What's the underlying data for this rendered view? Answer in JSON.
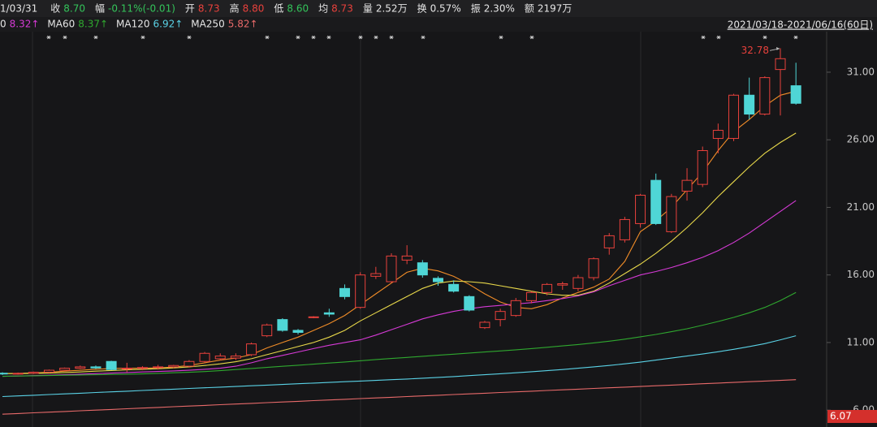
{
  "header": {
    "quote": [
      {
        "label": "1/03/31",
        "color": "#e6e6e6"
      },
      {
        "label": "收",
        "value": "8.70",
        "color": "#33c45a"
      },
      {
        "label": "幅",
        "value": "-0.11%(-0.01)",
        "color": "#33c45a"
      },
      {
        "label": "开",
        "value": "8.73",
        "color": "#e8413c"
      },
      {
        "label": "高",
        "value": "8.80",
        "color": "#e8413c"
      },
      {
        "label": "低",
        "value": "8.60",
        "color": "#33c45a"
      },
      {
        "label": "均",
        "value": "8.73",
        "color": "#e8413c"
      },
      {
        "label": "量",
        "value": "2.52万",
        "color": "#e6e6e6"
      },
      {
        "label": "换",
        "value": "0.57%",
        "color": "#e6e6e6"
      },
      {
        "label": "振",
        "value": "2.30%",
        "color": "#e6e6e6"
      },
      {
        "label": "额",
        "value": "2197万",
        "color": "#e6e6e6"
      }
    ],
    "ma_row_fragment": "0",
    "range": "2021/03/18-2021/06/16(60日)"
  },
  "chart_data": {
    "type": "candlestick",
    "up_color": "#e8413c",
    "down_color": "#4fd6d6",
    "open": [
      8.73,
      8.7,
      8.72,
      8.8,
      8.95,
      9.1,
      9.2,
      9.6,
      9.05,
      9.1,
      9.15,
      9.2,
      9.25,
      9.6,
      9.8,
      9.85,
      10.1,
      11.5,
      12.7,
      11.9,
      12.85,
      13.2,
      15.0,
      13.6,
      15.9,
      15.5,
      17.1,
      16.9,
      15.75,
      15.3,
      14.4,
      12.1,
      12.7,
      13.0,
      14.1,
      14.7,
      15.25,
      15.0,
      15.8,
      18.0,
      18.6,
      19.8,
      23.0,
      19.2,
      22.2,
      22.7,
      26.1,
      26.1,
      29.3,
      27.9,
      31.2,
      30.0
    ],
    "high": [
      8.8,
      8.78,
      8.85,
      9.0,
      9.15,
      9.3,
      9.3,
      9.65,
      9.5,
      9.25,
      9.35,
      9.35,
      9.7,
      10.3,
      10.2,
      10.2,
      11.0,
      12.4,
      12.8,
      12.0,
      12.95,
      13.5,
      15.3,
      16.2,
      16.6,
      17.6,
      18.2,
      17.1,
      15.9,
      15.6,
      14.5,
      12.6,
      13.5,
      14.3,
      14.8,
      15.4,
      15.5,
      16.0,
      17.3,
      19.1,
      20.3,
      22.0,
      23.5,
      22.0,
      23.9,
      25.5,
      27.2,
      29.4,
      30.6,
      30.7,
      32.78,
      31.7
    ],
    "low": [
      8.6,
      8.62,
      8.66,
      8.75,
      8.9,
      9.05,
      9.05,
      8.95,
      8.8,
      8.95,
      9.0,
      9.1,
      9.15,
      9.5,
      9.7,
      9.7,
      10.0,
      11.4,
      11.8,
      11.6,
      12.8,
      12.9,
      14.2,
      13.5,
      15.7,
      15.4,
      16.8,
      15.8,
      15.2,
      14.7,
      13.3,
      12.0,
      12.2,
      12.9,
      13.9,
      14.5,
      14.9,
      14.8,
      15.6,
      17.5,
      18.4,
      19.5,
      19.7,
      19.1,
      21.5,
      22.5,
      25.0,
      25.9,
      27.5,
      27.8,
      27.8,
      28.6
    ],
    "close": [
      8.7,
      8.72,
      8.8,
      8.95,
      9.1,
      9.2,
      9.12,
      9.0,
      9.1,
      9.15,
      9.2,
      9.3,
      9.6,
      10.2,
      10.0,
      10.0,
      10.9,
      12.3,
      11.9,
      11.75,
      12.9,
      13.1,
      14.4,
      16.0,
      16.1,
      17.4,
      17.4,
      16.0,
      15.5,
      14.8,
      13.4,
      12.5,
      13.3,
      14.1,
      14.7,
      15.3,
      15.35,
      15.8,
      17.2,
      18.9,
      20.1,
      21.9,
      19.8,
      21.8,
      23.0,
      25.2,
      26.7,
      29.3,
      27.9,
      30.6,
      32.0,
      28.7
    ],
    "series": [
      {
        "color": "#f08c28",
        "values": [
          8.7,
          8.72,
          8.75,
          8.8,
          8.88,
          8.95,
          9.02,
          9.08,
          9.1,
          9.1,
          9.12,
          9.18,
          9.3,
          9.5,
          9.7,
          9.85,
          10.1,
          10.6,
          11.0,
          11.4,
          11.9,
          12.4,
          13.0,
          13.8,
          14.6,
          15.4,
          16.2,
          16.5,
          16.3,
          15.9,
          15.3,
          14.6,
          14.0,
          13.6,
          13.5,
          13.8,
          14.3,
          14.7,
          15.1,
          15.7,
          17.0,
          19.2,
          20.0,
          21.0,
          22.3,
          23.6,
          25.2,
          26.6,
          27.5,
          28.5,
          29.3,
          29.6
        ]
      },
      {
        "color": "#e8d84a",
        "values": [
          8.7,
          8.7,
          8.72,
          8.74,
          8.78,
          8.82,
          8.88,
          8.93,
          8.98,
          9.02,
          9.06,
          9.12,
          9.2,
          9.3,
          9.42,
          9.58,
          9.8,
          10.1,
          10.4,
          10.7,
          11.0,
          11.4,
          11.9,
          12.6,
          13.2,
          13.8,
          14.4,
          15.0,
          15.4,
          15.55,
          15.5,
          15.4,
          15.2,
          15.0,
          14.8,
          14.6,
          14.5,
          14.5,
          14.8,
          15.4,
          16.1,
          16.8,
          17.6,
          18.5,
          19.5,
          20.6,
          21.8,
          22.9,
          24.0,
          25.0,
          25.8,
          26.5
        ]
      },
      {
        "color": "#d63ad6",
        "legend_label": "8.32↑",
        "values": [
          8.5,
          8.52,
          8.55,
          8.58,
          8.62,
          8.66,
          8.7,
          8.74,
          8.78,
          8.82,
          8.86,
          8.9,
          8.95,
          9.02,
          9.1,
          9.25,
          9.5,
          9.8,
          10.05,
          10.3,
          10.55,
          10.8,
          11.0,
          11.2,
          11.55,
          11.95,
          12.35,
          12.75,
          13.05,
          13.3,
          13.5,
          13.65,
          13.75,
          13.85,
          13.95,
          14.1,
          14.25,
          14.45,
          14.75,
          15.2,
          15.6,
          16.0,
          16.25,
          16.55,
          16.9,
          17.3,
          17.8,
          18.4,
          19.1,
          19.9,
          20.7,
          21.5
        ]
      },
      {
        "name": "MA60",
        "color": "#2fa82f",
        "legend_label": "8.37↑",
        "values": [
          8.5,
          8.52,
          8.54,
          8.56,
          8.58,
          8.6,
          8.62,
          8.64,
          8.66,
          8.68,
          8.72,
          8.76,
          8.8,
          8.85,
          8.92,
          9.0,
          9.08,
          9.16,
          9.24,
          9.32,
          9.4,
          9.48,
          9.56,
          9.65,
          9.74,
          9.82,
          9.9,
          9.98,
          10.06,
          10.14,
          10.22,
          10.3,
          10.38,
          10.46,
          10.55,
          10.65,
          10.75,
          10.85,
          10.97,
          11.1,
          11.25,
          11.42,
          11.6,
          11.8,
          12.02,
          12.28,
          12.56,
          12.86,
          13.2,
          13.6,
          14.1,
          14.7
        ]
      },
      {
        "name": "MA120",
        "color": "#5ad2e6",
        "legend_label": "6.92↑",
        "values": [
          7.0,
          7.05,
          7.1,
          7.15,
          7.2,
          7.25,
          7.3,
          7.35,
          7.4,
          7.45,
          7.5,
          7.55,
          7.6,
          7.65,
          7.7,
          7.75,
          7.8,
          7.85,
          7.9,
          7.95,
          8.0,
          8.05,
          8.1,
          8.15,
          8.2,
          8.25,
          8.3,
          8.36,
          8.42,
          8.48,
          8.55,
          8.62,
          8.69,
          8.76,
          8.84,
          8.92,
          9.0,
          9.1,
          9.2,
          9.3,
          9.42,
          9.55,
          9.7,
          9.85,
          10.0,
          10.15,
          10.32,
          10.5,
          10.7,
          10.92,
          11.2,
          11.5
        ]
      },
      {
        "name": "MA250",
        "color": "#e86a6a",
        "legend_label": "5.82↑",
        "values": [
          5.7,
          5.75,
          5.8,
          5.85,
          5.9,
          5.95,
          6.0,
          6.05,
          6.1,
          6.15,
          6.2,
          6.25,
          6.3,
          6.35,
          6.4,
          6.45,
          6.5,
          6.55,
          6.6,
          6.65,
          6.7,
          6.75,
          6.8,
          6.85,
          6.9,
          6.95,
          7.0,
          7.05,
          7.1,
          7.15,
          7.2,
          7.25,
          7.3,
          7.35,
          7.4,
          7.45,
          7.5,
          7.55,
          7.6,
          7.65,
          7.7,
          7.75,
          7.8,
          7.85,
          7.9,
          7.95,
          8.0,
          8.05,
          8.1,
          8.15,
          8.2,
          8.25
        ]
      }
    ],
    "ylim": [
      4.75,
      33.94
    ],
    "yticks": [
      {
        "value": 6,
        "label": "6.00"
      },
      {
        "value": 11,
        "label": "11.00"
      },
      {
        "value": 16,
        "label": "16.00"
      },
      {
        "value": 21,
        "label": "21.00"
      },
      {
        "value": 26,
        "label": "26.00"
      },
      {
        "value": 31,
        "label": "31.00"
      }
    ],
    "grid": false,
    "max_annotation": "32.78",
    "price_marker": "6.07"
  }
}
